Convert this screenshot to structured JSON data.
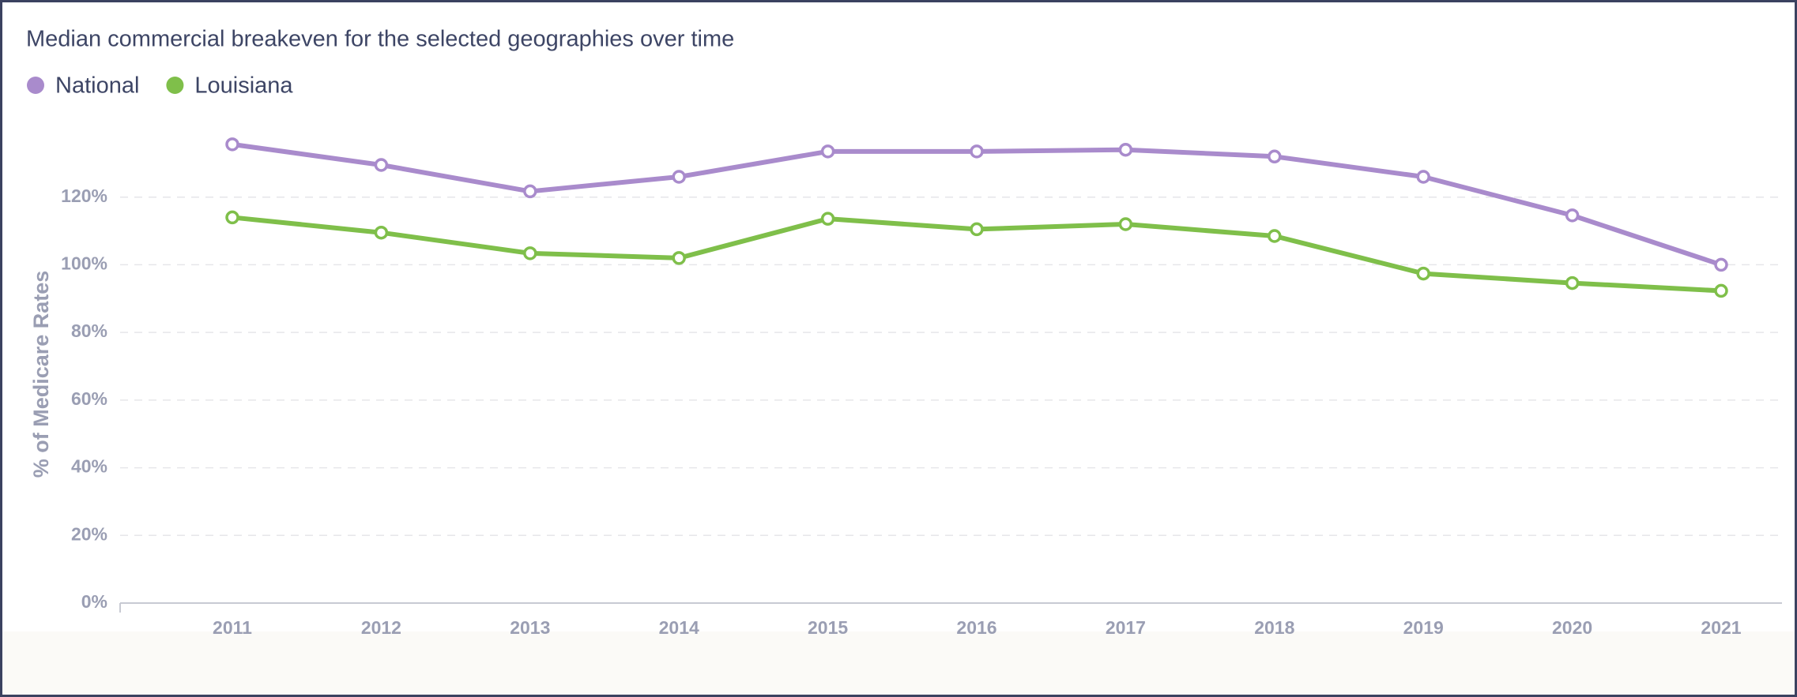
{
  "chart_data": {
    "type": "line",
    "title": "Median commercial breakeven for the selected geographies over time",
    "y_label": "% of Medicare Rates",
    "categories": [
      "2011",
      "2012",
      "2013",
      "2014",
      "2015",
      "2016",
      "2017",
      "2018",
      "2019",
      "2020",
      "2021"
    ],
    "series": [
      {
        "name": "National",
        "color": "#a98bcc",
        "values": [
          135.6,
          129.5,
          121.7,
          126,
          133.5,
          133.5,
          134,
          132,
          126,
          114.6,
          100
        ]
      },
      {
        "name": "Louisiana",
        "color": "#7fbf4a",
        "values": [
          114,
          109.5,
          103.4,
          102,
          113.6,
          110.5,
          112,
          108.5,
          97.4,
          94.6,
          92.3
        ]
      }
    ],
    "ylim": [
      0,
      140
    ],
    "yticks": [
      {
        "value": 0,
        "label": "0%"
      },
      {
        "value": 20,
        "label": "20%"
      },
      {
        "value": 40,
        "label": "40%"
      },
      {
        "value": 60,
        "label": "60%"
      },
      {
        "value": 80,
        "label": "80%"
      },
      {
        "value": 100,
        "label": "100%"
      },
      {
        "value": 120,
        "label": "120%"
      }
    ],
    "grid": true
  }
}
